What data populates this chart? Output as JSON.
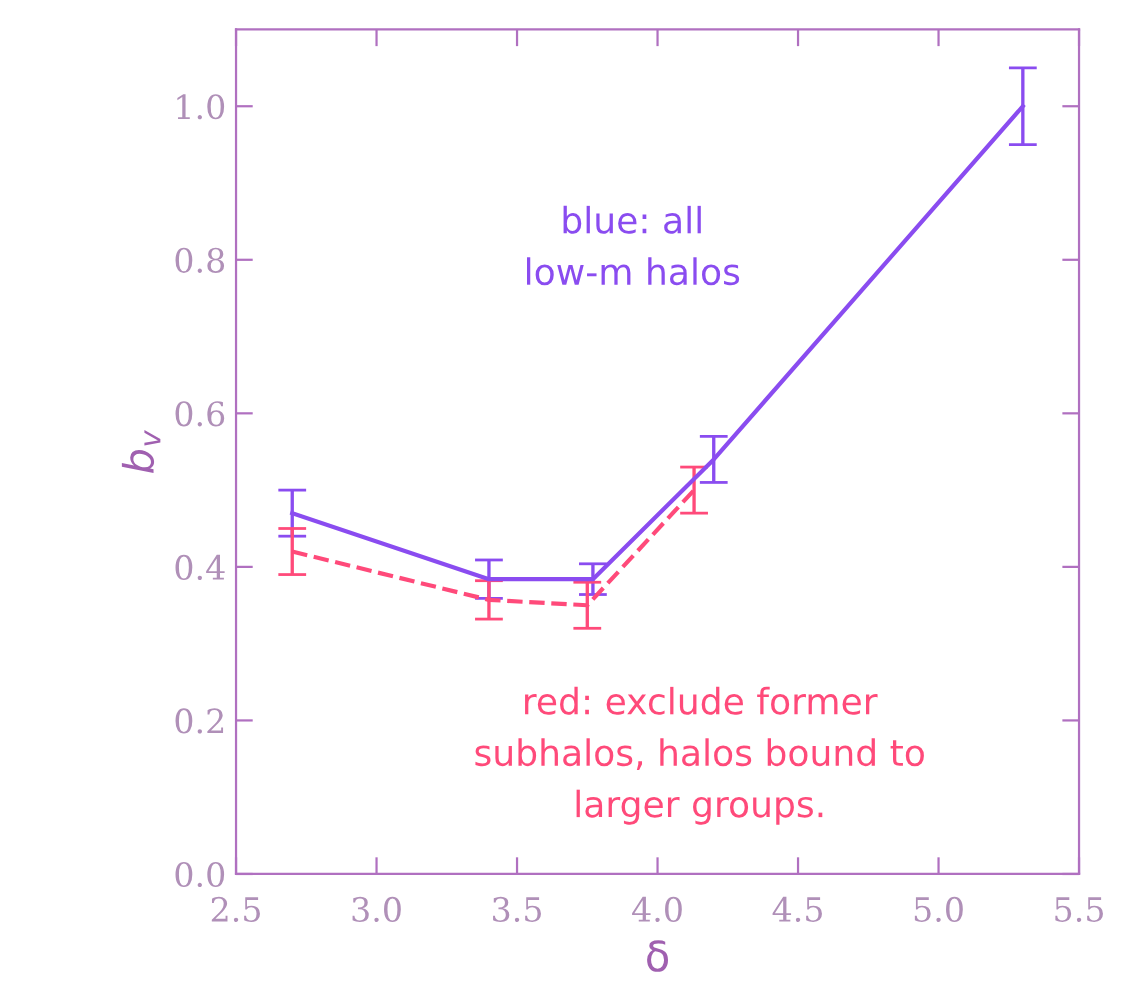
{
  "chart_data": {
    "type": "line",
    "xlabel": "δ",
    "ylabel": "b$_{v}$",
    "xlim": [
      2.5,
      5.5
    ],
    "xticks": [
      {
        "value": 2.5,
        "label": "2.5"
      },
      {
        "value": 3.0,
        "label": "3.0"
      },
      {
        "value": 3.5,
        "label": "3.5"
      },
      {
        "value": 4.0,
        "label": "4.0"
      },
      {
        "value": 4.5,
        "label": "4.5"
      },
      {
        "value": 5.0,
        "label": "5.0"
      },
      {
        "value": 5.5,
        "label": "5.5"
      }
    ],
    "ylim": [
      0,
      1.1
    ],
    "yticks": [
      {
        "value": 0,
        "label": "0.0"
      },
      {
        "value": 0.2,
        "label": "0.2"
      },
      {
        "value": 0.4,
        "label": "0.4"
      },
      {
        "value": 0.6,
        "label": "0.6"
      },
      {
        "value": 0.8,
        "label": "0.8"
      },
      {
        "value": 1.0,
        "label": "1.0"
      }
    ],
    "grid": false,
    "legend": false,
    "series": [
      {
        "color": "#8a4cf0",
        "line_style": "solid",
        "x": [
          2.7,
          3.4,
          3.77,
          4.2,
          5.3
        ],
        "values": [
          0.47,
          0.384,
          0.384,
          0.54,
          1.0
        ],
        "errors": [
          0.03,
          0.025,
          0.02,
          0.03,
          0.05
        ]
      },
      {
        "color": "#ff4a7a",
        "line_style": "dashed",
        "x": [
          2.7,
          3.4,
          3.75,
          4.13
        ],
        "values": [
          0.42,
          0.357,
          0.35,
          0.5
        ],
        "errors": [
          0.03,
          0.025,
          0.03,
          0.03
        ]
      }
    ],
    "annotations": [
      "blue: all\nlow-m halos",
      "red: exclude former\nsubhalos, halos bound to\nlarger groups."
    ]
  }
}
